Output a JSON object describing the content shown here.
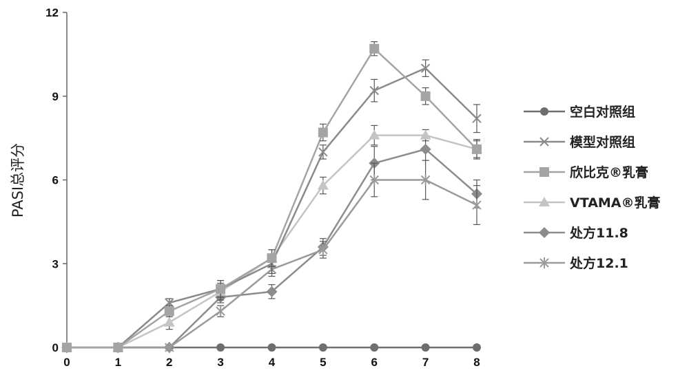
{
  "chart_data": {
    "type": "line",
    "title": "",
    "xlabel": "",
    "ylabel": "PASI总评分",
    "x": [
      0,
      1,
      2,
      3,
      4,
      5,
      6,
      7,
      8
    ],
    "x_ticks": [
      "0",
      "1",
      "2",
      "3",
      "4",
      "5",
      "6",
      "7",
      "8"
    ],
    "xlim": [
      0,
      8
    ],
    "ylim": [
      0,
      12
    ],
    "y_ticks": [
      "0",
      "3",
      "6",
      "9",
      "12"
    ],
    "grid": false,
    "legend_position": "right",
    "series": [
      {
        "name": "空白对照组",
        "marker": "circle",
        "color": "#6e6e6e",
        "values": [
          0,
          0,
          0,
          0,
          0,
          0,
          0,
          0,
          0
        ],
        "errors": [
          0,
          0,
          0,
          0,
          0,
          0,
          0,
          0,
          0
        ]
      },
      {
        "name": "模型对照组",
        "marker": "x",
        "color": "#8a8a8a",
        "values": [
          0,
          0,
          1.6,
          2.1,
          3.0,
          7.0,
          9.2,
          10.0,
          8.2
        ],
        "errors": [
          0,
          0,
          0.15,
          0.3,
          0.35,
          0.25,
          0.4,
          0.3,
          0.5
        ]
      },
      {
        "name": "欣比克®乳膏",
        "marker": "square",
        "color": "#a4a4a4",
        "values": [
          0,
          0,
          1.3,
          2.1,
          3.2,
          7.7,
          10.7,
          9.0,
          7.1
        ],
        "errors": [
          0,
          0,
          0.2,
          0.3,
          0.3,
          0.3,
          0.25,
          0.3,
          0.35
        ]
      },
      {
        "name": "VTAMA®乳膏",
        "marker": "triangle",
        "color": "#c4c4c4",
        "values": [
          0,
          0,
          0.9,
          2.0,
          3.2,
          5.8,
          7.6,
          7.6,
          7.1
        ],
        "errors": [
          0,
          0,
          0.25,
          0.3,
          0.3,
          0.3,
          0.35,
          0.2,
          0.3
        ]
      },
      {
        "name": "处方11.8",
        "marker": "diamond",
        "color": "#8c8c8c",
        "values": [
          0,
          0,
          0,
          1.8,
          2.0,
          3.6,
          6.6,
          7.1,
          5.5
        ],
        "errors": [
          0,
          0,
          0,
          0.2,
          0.25,
          0.3,
          0.6,
          0.4,
          0.5
        ]
      },
      {
        "name": "处方12.1",
        "marker": "asterisk",
        "color": "#9a9a9a",
        "values": [
          0,
          0,
          0,
          1.3,
          2.8,
          3.5,
          6.0,
          6.0,
          5.1
        ],
        "errors": [
          0,
          0,
          0,
          0.2,
          0.25,
          0.3,
          0.6,
          0.7,
          0.7
        ]
      }
    ]
  }
}
